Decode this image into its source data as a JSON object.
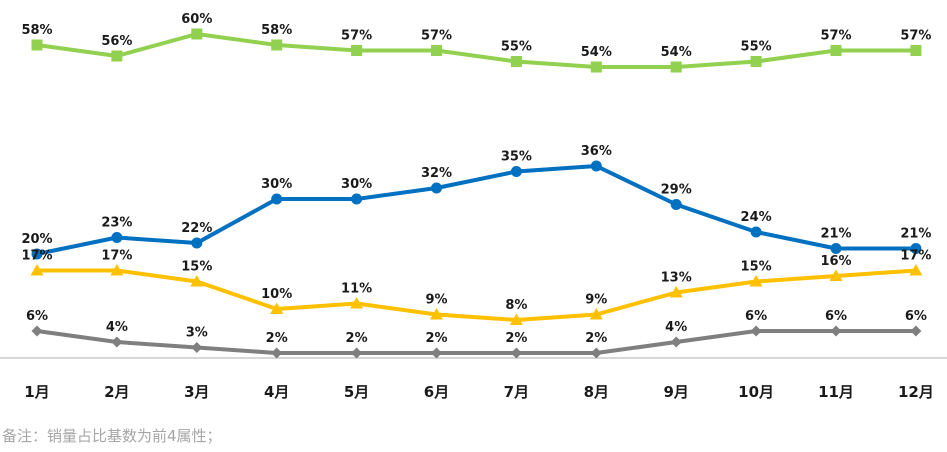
{
  "chart_data": {
    "type": "line",
    "categories": [
      "1月",
      "2月",
      "3月",
      "4月",
      "5月",
      "6月",
      "7月",
      "8月",
      "9月",
      "10月",
      "11月",
      "12月"
    ],
    "ylim": [
      0,
      62
    ],
    "grid": false,
    "legend": "none",
    "series": [
      {
        "color": "#92D050",
        "marker": "square",
        "values": [
          58,
          56,
          60,
          58,
          57,
          57,
          55,
          54,
          54,
          55,
          57,
          57
        ],
        "labels": [
          "58%",
          "56%",
          "60%",
          "58%",
          "57%",
          "57%",
          "55%",
          "54%",
          "54%",
          "55%",
          "57%",
          "57%"
        ]
      },
      {
        "color": "#0070C0",
        "marker": "circle",
        "values": [
          20,
          23,
          22,
          30,
          30,
          32,
          35,
          36,
          29,
          24,
          21,
          21
        ],
        "labels": [
          "20%",
          "23%",
          "22%",
          "30%",
          "30%",
          "32%",
          "35%",
          "36%",
          "29%",
          "24%",
          "21%",
          "21%"
        ]
      },
      {
        "color": "#FFC000",
        "marker": "triangle",
        "values": [
          17,
          17,
          15,
          10,
          11,
          9,
          8,
          9,
          13,
          15,
          16,
          17
        ],
        "labels": [
          "17%",
          "17%",
          "15%",
          "10%",
          "11%",
          "9%",
          "8%",
          "9%",
          "13%",
          "15%",
          "16%",
          "17%"
        ]
      },
      {
        "color": "#7F7F7F",
        "marker": "diamond",
        "values": [
          6,
          4,
          3,
          2,
          2,
          2,
          2,
          2,
          4,
          6,
          6,
          6
        ],
        "labels": [
          "6%",
          "4%",
          "3%",
          "2%",
          "2%",
          "2%",
          "2%",
          "2%",
          "4%",
          "6%",
          "6%",
          "6%"
        ]
      }
    ]
  },
  "note": "备注：销量占比基数为前4属性；"
}
